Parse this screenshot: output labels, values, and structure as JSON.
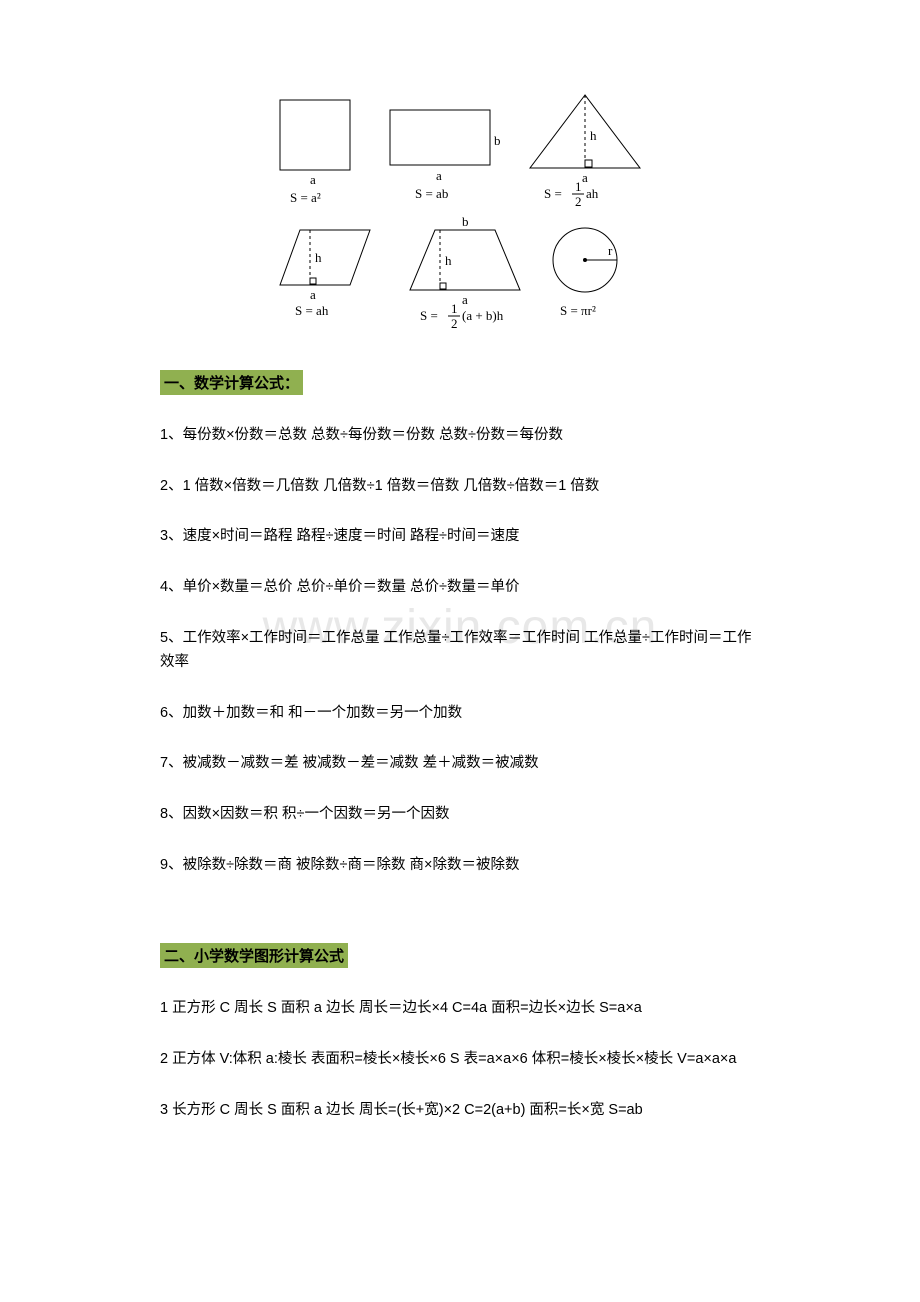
{
  "watermark": "www.zixin.com.cn",
  "diagram": {
    "shapes": {
      "square": {
        "label_side": "a",
        "formula": "S = a²"
      },
      "rectangle": {
        "label_w": "a",
        "label_h": "b",
        "formula": "S = ab"
      },
      "triangle": {
        "label_base": "a",
        "label_h": "h",
        "formula_prefix": "S = ",
        "formula_frac_top": "1",
        "formula_frac_bot": "2",
        "formula_suffix": "ah"
      },
      "parallelogram": {
        "label_base": "a",
        "label_h": "h",
        "formula": "S = ah"
      },
      "trapezoid": {
        "label_top": "b",
        "label_bot": "a",
        "label_h": "h",
        "formula_prefix": "S = ",
        "formula_frac_top": "1",
        "formula_frac_bot": "2",
        "formula_suffix": "(a + b)h"
      },
      "circle": {
        "label_r": "r",
        "formula": "S = πr²"
      }
    },
    "stroke": "#000000",
    "stroke_width": 1,
    "font_size": 13
  },
  "section1": {
    "heading": "一、数学计算公式：",
    "lines": [
      "1、每份数×份数＝总数 总数÷每份数＝份数 总数÷份数＝每份数",
      "2、1 倍数×倍数＝几倍数 几倍数÷1 倍数＝倍数 几倍数÷倍数＝1 倍数",
      "3、速度×时间＝路程 路程÷速度＝时间 路程÷时间＝速度",
      "4、单价×数量＝总价 总价÷单价＝数量 总价÷数量＝单价",
      "5、工作效率×工作时间＝工作总量 工作总量÷工作效率＝工作时间 工作总量÷工作时间＝工作效率",
      "6、加数＋加数＝和 和－一个加数＝另一个加数",
      "7、被减数－减数＝差 被减数－差＝减数 差＋减数＝被减数",
      "8、因数×因数＝积 积÷一个因数＝另一个因数",
      "9、被除数÷除数＝商 被除数÷商＝除数 商×除数＝被除数"
    ]
  },
  "section2": {
    "heading": "二、小学数学图形计算公式",
    "lines": [
      "1 正方形 C 周长 S 面积 a 边长 周长＝边长×4 C=4a 面积=边长×边长 S=a×a",
      "2 正方体 V:体积 a:棱长 表面积=棱长×棱长×6 S 表=a×a×6 体积=棱长×棱长×棱长 V=a×a×a",
      "3 长方形 C 周长 S 面积 a 边长 周长=(长+宽)×2 C=2(a+b) 面积=长×宽 S=ab"
    ]
  }
}
